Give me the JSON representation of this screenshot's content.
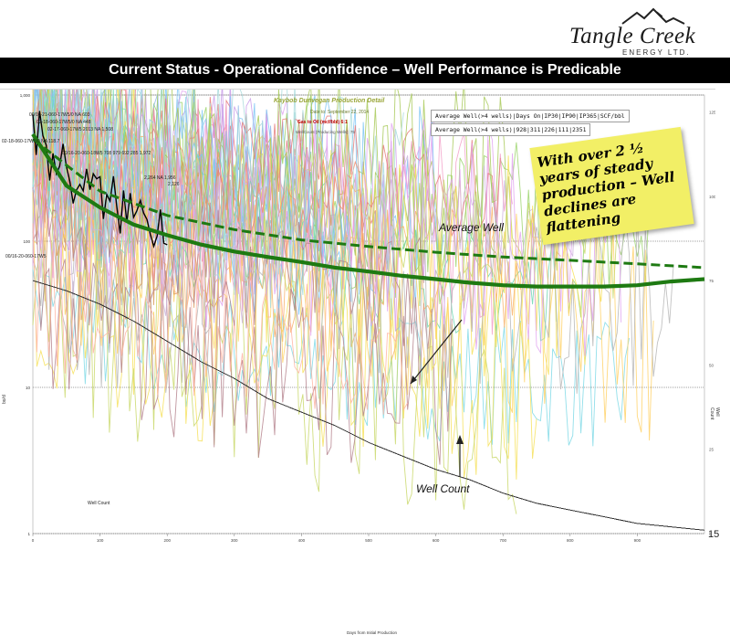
{
  "header": {
    "logo_name": "Tangle Creek",
    "logo_sub": "ENERGY LTD.",
    "title": "Current Status - Operational Confidence – Well Performance is Predicable",
    "page_number": "15"
  },
  "chart_header": {
    "title": "Kaybob Dunvegan Production Detail",
    "date": "Date to: September 22, 2014",
    "gor_label": "Gas to Oil (mcf/bbl)",
    "gor_value": "6:1",
    "wellcount_label": "WellCount (Producing Wells): 75"
  },
  "stat_boxes": {
    "header": "Average Well(>4 wells)|Days On|IP30|IP90|IP365|SCF/bbl",
    "values": "Average Well(>4 wells)|928|311|226|111|2351"
  },
  "callout": {
    "text": "With over 2 ½ years of steady production – Well declines are flattening"
  },
  "annotations": {
    "average_well": "Average Well",
    "well_count": "Well Count",
    "well_count_axis": "Well Count"
  },
  "well_labels": [
    "00/16-21-060-17W5/0 NA 603",
    "02-18-060-17W5/0 NA 448",
    "02-17-060-17W5 2013 NA 1,508",
    "02-18-060-17W5/0 NA 118.7",
    "2,264 NA 1,956",
    "2,126",
    "00/16-20-060-18W5 708 979 692 285 1,972",
    "00/16-20-060-17W5"
  ],
  "chart_data": {
    "type": "line",
    "title": "Kaybob Dunvegan Production Detail",
    "xlabel": "Days from Initial Production",
    "ylabel": "bo/d",
    "y2label": "Well Count",
    "yscale": "log",
    "xlim": [
      0,
      1000
    ],
    "ylim": [
      1,
      1000
    ],
    "y_ticks": [
      "1,000",
      "100",
      "10",
      "1"
    ],
    "x_ticks": [
      0,
      100,
      200,
      300,
      400,
      500,
      600,
      700,
      800,
      900
    ],
    "y2_ticks": [
      125,
      100,
      75,
      50,
      25,
      0
    ],
    "grid": true,
    "series": [
      {
        "name": "Average Well",
        "color": "#1e7a12",
        "x": [
          0,
          50,
          100,
          150,
          200,
          250,
          300,
          350,
          400,
          450,
          500,
          550,
          600,
          650,
          700,
          750,
          800,
          850,
          900,
          950,
          1000
        ],
        "values": [
          540,
          240,
          170,
          130,
          110,
          95,
          85,
          78,
          72,
          66,
          62,
          58,
          55,
          52,
          50,
          49,
          49,
          49,
          50,
          53,
          55
        ]
      },
      {
        "name": "Average Well (type curve)",
        "color": "#1e7a12",
        "dashed": true,
        "x": [
          0,
          100,
          200,
          300,
          400,
          500,
          600,
          700,
          800,
          900,
          1000
        ],
        "values": [
          500,
          220,
          150,
          120,
          102,
          92,
          84,
          78,
          74,
          70,
          66
        ]
      },
      {
        "name": "Well Count",
        "color": "#333333",
        "axis": "right",
        "x": [
          0,
          50,
          100,
          150,
          200,
          250,
          300,
          350,
          400,
          450,
          500,
          550,
          600,
          650,
          700,
          750,
          800,
          850,
          900,
          950,
          1000
        ],
        "values": [
          75,
          72,
          68,
          63,
          57,
          51,
          46,
          40,
          36,
          32,
          27,
          23,
          19,
          16,
          12,
          9,
          7,
          5,
          3,
          2,
          1
        ]
      }
    ]
  },
  "colors": {
    "title_bar": "#000000",
    "callout": "#f2ef66",
    "average_well": "#1e7a12",
    "chart_title": "#9aa63a"
  }
}
